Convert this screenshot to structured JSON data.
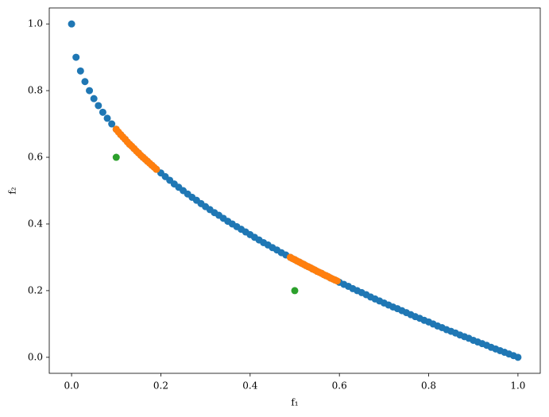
{
  "chart_data": {
    "type": "scatter",
    "xlabel": "f₁",
    "ylabel": "f₂",
    "xlim": [
      -0.05,
      1.05
    ],
    "ylim": [
      -0.048,
      1.048
    ],
    "xticks": [
      {
        "value": 0,
        "label": "0.0"
      },
      {
        "value": 0.2,
        "label": "0.2"
      },
      {
        "value": 0.4,
        "label": "0.4"
      },
      {
        "value": 0.6,
        "label": "0.6"
      },
      {
        "value": 0.8,
        "label": "0.8"
      },
      {
        "value": 1,
        "label": "1.0"
      }
    ],
    "yticks": [
      {
        "value": 0,
        "label": "0.0"
      },
      {
        "value": 0.2,
        "label": "0.2"
      },
      {
        "value": 0.4,
        "label": "0.4"
      },
      {
        "value": 0.6,
        "label": "0.6"
      },
      {
        "value": 0.8,
        "label": "0.8"
      },
      {
        "value": 1,
        "label": "1.0"
      }
    ],
    "series": [
      {
        "color": "#1f77b4",
        "x": [
          0,
          0.01,
          0.02,
          0.03,
          0.04,
          0.05,
          0.06,
          0.07,
          0.08,
          0.09,
          0.1,
          0.11,
          0.12,
          0.13,
          0.14,
          0.15,
          0.16,
          0.17,
          0.18,
          0.19,
          0.2,
          0.21,
          0.22,
          0.23,
          0.24,
          0.25,
          0.26,
          0.27,
          0.28,
          0.29,
          0.3,
          0.31,
          0.32,
          0.33,
          0.34,
          0.35,
          0.36,
          0.37,
          0.38,
          0.39,
          0.4,
          0.41,
          0.42,
          0.43,
          0.44,
          0.45,
          0.46,
          0.47,
          0.48,
          0.49,
          0.5,
          0.51,
          0.52,
          0.53,
          0.54,
          0.55,
          0.56,
          0.57,
          0.58,
          0.59,
          0.6,
          0.61,
          0.62,
          0.63,
          0.64,
          0.65,
          0.66,
          0.67,
          0.68,
          0.69,
          0.7,
          0.71,
          0.72,
          0.73,
          0.74,
          0.75,
          0.76,
          0.77,
          0.78,
          0.79,
          0.8,
          0.81,
          0.82,
          0.83,
          0.84,
          0.85,
          0.86,
          0.87,
          0.88,
          0.89,
          0.9,
          0.91,
          0.92,
          0.93,
          0.94,
          0.95,
          0.96,
          0.97,
          0.98,
          0.99,
          1
        ],
        "values": [
          1,
          0.9,
          0.859,
          0.827,
          0.8,
          0.776,
          0.755,
          0.735,
          0.717,
          0.7,
          0.684,
          0.668,
          0.654,
          0.639,
          0.626,
          0.613,
          0.6,
          0.588,
          0.576,
          0.564,
          0.553,
          0.542,
          0.531,
          0.52,
          0.51,
          0.5,
          0.49,
          0.48,
          0.471,
          0.461,
          0.452,
          0.443,
          0.434,
          0.426,
          0.417,
          0.408,
          0.4,
          0.392,
          0.384,
          0.376,
          0.368,
          0.36,
          0.352,
          0.344,
          0.337,
          0.329,
          0.322,
          0.314,
          0.307,
          0.3,
          0.293,
          0.286,
          0.279,
          0.272,
          0.265,
          0.258,
          0.252,
          0.245,
          0.238,
          0.232,
          0.225,
          0.219,
          0.213,
          0.206,
          0.2,
          0.194,
          0.188,
          0.181,
          0.175,
          0.169,
          0.163,
          0.157,
          0.151,
          0.146,
          0.14,
          0.134,
          0.128,
          0.122,
          0.117,
          0.111,
          0.106,
          0.1,
          0.094,
          0.089,
          0.083,
          0.078,
          0.073,
          0.067,
          0.062,
          0.057,
          0.051,
          0.046,
          0.041,
          0.036,
          0.03,
          0.025,
          0.02,
          0.015,
          0.01,
          0.005,
          0
        ]
      },
      {
        "color": "#ff7f0e",
        "x": [
          0.1,
          0.105,
          0.11,
          0.115,
          0.12,
          0.125,
          0.13,
          0.135,
          0.14,
          0.145,
          0.15,
          0.155,
          0.16,
          0.165,
          0.17,
          0.175,
          0.18,
          0.185,
          0.19,
          0.49,
          0.495,
          0.5,
          0.505,
          0.51,
          0.515,
          0.52,
          0.525,
          0.53,
          0.535,
          0.54,
          0.545,
          0.55,
          0.555,
          0.56,
          0.565,
          0.57,
          0.575,
          0.58,
          0.585,
          0.59,
          0.595
        ],
        "values": [
          0.684,
          0.676,
          0.668,
          0.661,
          0.654,
          0.646,
          0.639,
          0.633,
          0.626,
          0.619,
          0.613,
          0.606,
          0.6,
          0.594,
          0.588,
          0.582,
          0.576,
          0.57,
          0.564,
          0.3,
          0.296,
          0.293,
          0.289,
          0.286,
          0.282,
          0.279,
          0.275,
          0.272,
          0.269,
          0.265,
          0.262,
          0.258,
          0.255,
          0.252,
          0.248,
          0.245,
          0.242,
          0.238,
          0.235,
          0.232,
          0.229
        ]
      },
      {
        "color": "#2ca02c",
        "x": [
          0.1,
          0.5
        ],
        "values": [
          0.6,
          0.2
        ]
      }
    ]
  }
}
